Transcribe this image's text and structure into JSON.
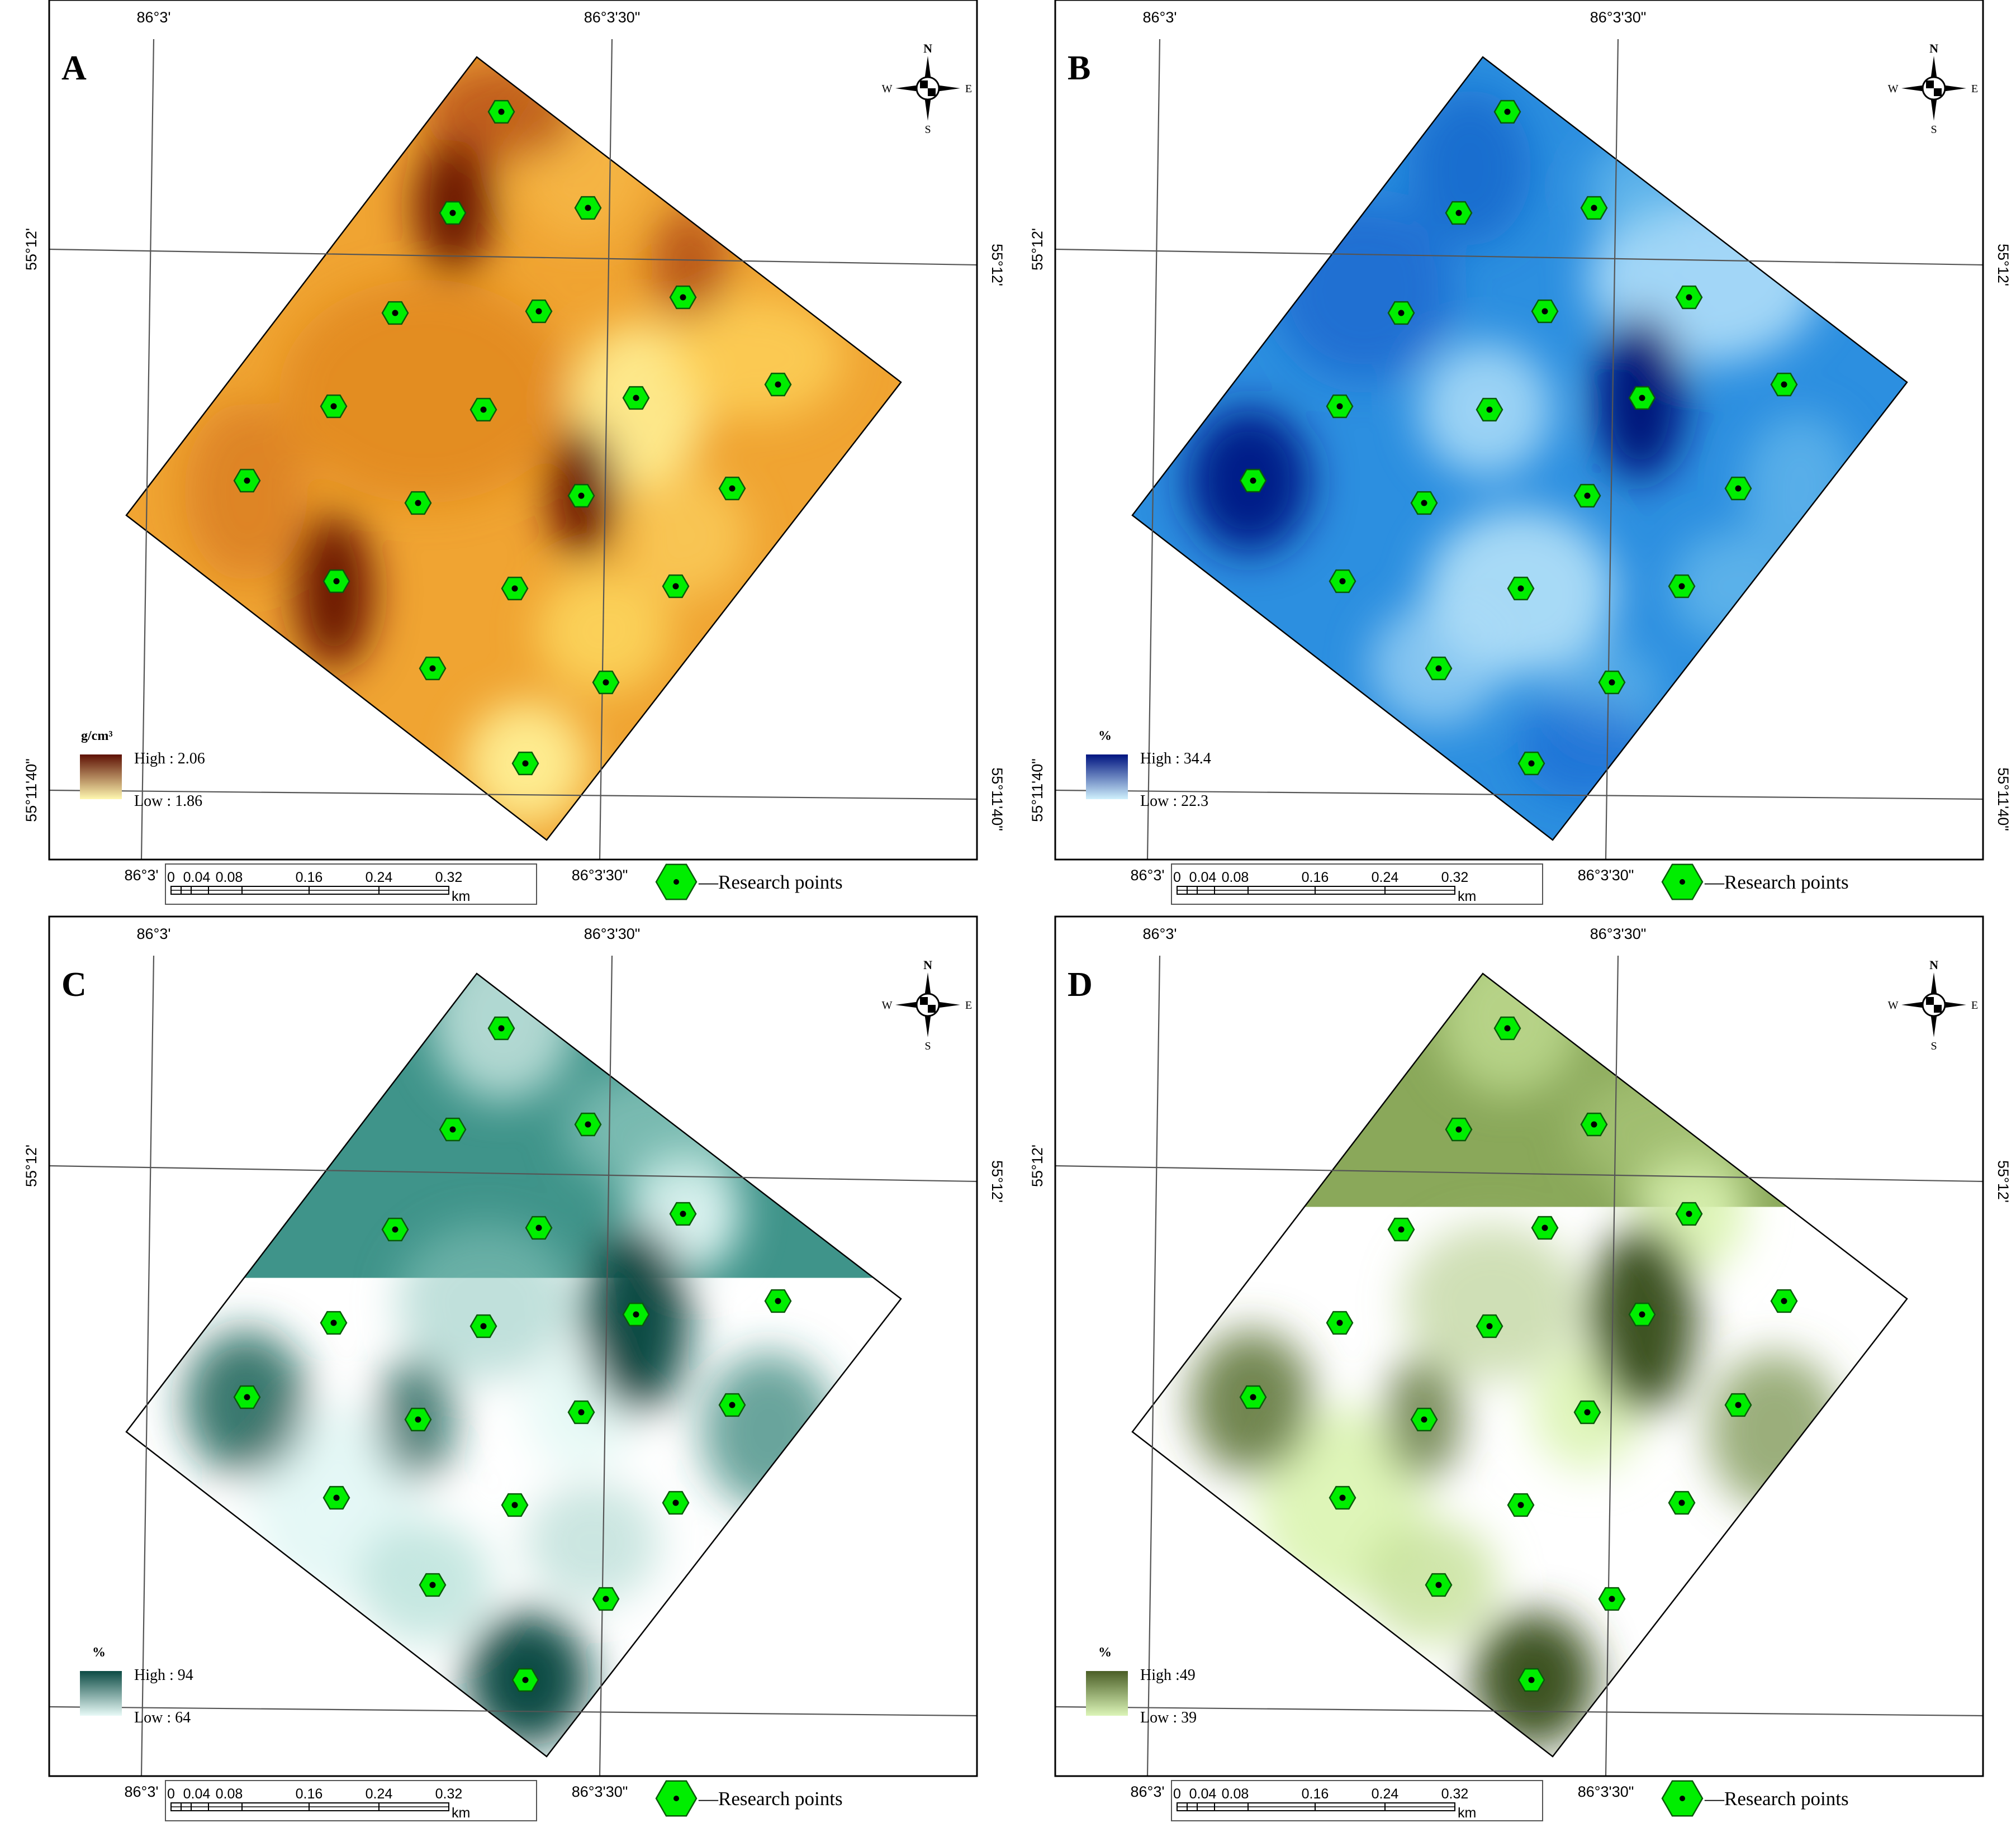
{
  "coordinates": {
    "lon_left": "86°3'",
    "lon_right": "86°3'30\"",
    "lat_top": "55°12'",
    "lat_bottom": "55°11'40\""
  },
  "compass": {
    "n": "N",
    "s": "S",
    "e": "E",
    "w": "W"
  },
  "scale_bar": {
    "ticks": [
      "0",
      "0.04",
      "0.08",
      "0.16",
      "0.24",
      "0.32"
    ],
    "unit": "km"
  },
  "legend_symbol_label": "Research points",
  "panels": [
    {
      "letter": "A",
      "unit": "g/cm³",
      "high_label": "High : 2.06",
      "low_label": "Low : 1.86",
      "colors": {
        "base": "#f0a432",
        "light": "#fff39a",
        "mid": "#d97a14",
        "dark": "#6a1505"
      }
    },
    {
      "letter": "B",
      "unit": "%",
      "high_label": "High : 34.4",
      "low_label": "Low : 22.3",
      "colors": {
        "base": "#2c8fe0",
        "light": "#c7ecfb",
        "mid": "#1560c8",
        "dark": "#00147a"
      }
    },
    {
      "letter": "C",
      "unit": "%",
      "high_label": "High : 94",
      "low_label": "Low : 64",
      "colors": {
        "base": "#3f948a",
        "light": "#e4f8f5",
        "mid": "#2a7d72",
        "dark": "#0c4b44"
      }
    },
    {
      "letter": "D",
      "unit": "%",
      "high_label": "High :49",
      "low_label": "Low : 39",
      "colors": {
        "base": "#8aa85a",
        "light": "#dcf4b4",
        "mid": "#6f8c43",
        "dark": "#3d5220"
      }
    }
  ],
  "research_point_color": "#00ee00"
}
